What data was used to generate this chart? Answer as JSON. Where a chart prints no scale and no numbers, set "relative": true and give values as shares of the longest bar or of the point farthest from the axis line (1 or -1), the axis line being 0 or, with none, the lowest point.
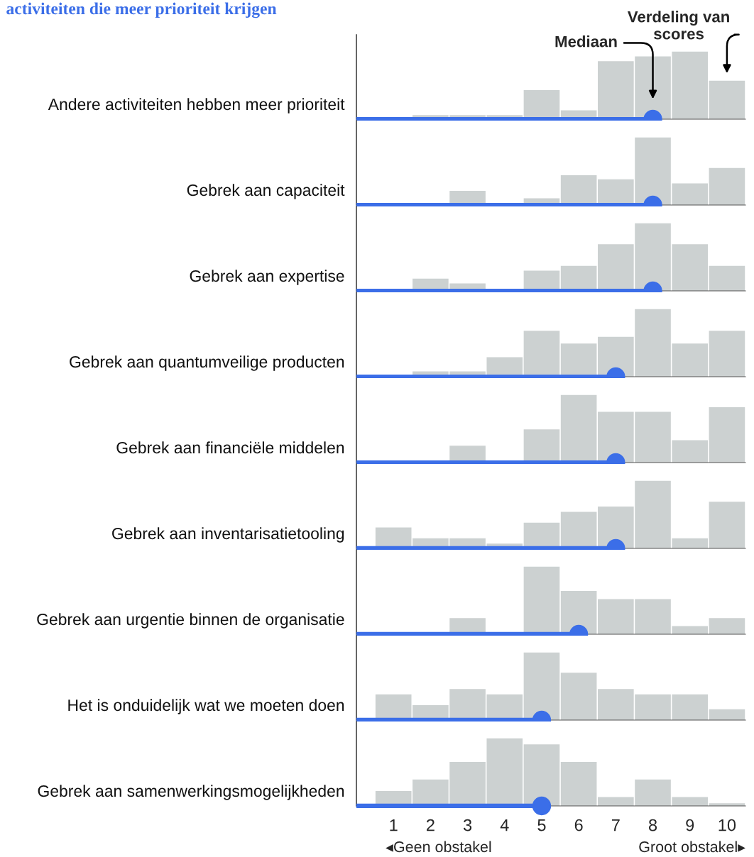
{
  "chart_data": [
    {
      "type": "bar",
      "title": "activiteiten die meer prioriteit krijgen",
      "ylabel": "Andere activiteiten hebben meer prioriteit",
      "relative": true,
      "x": [
        1,
        2,
        3,
        4,
        5,
        6,
        7,
        8,
        9,
        10
      ],
      "xlim": [
        0,
        10.5
      ],
      "xticks": [
        1,
        2,
        3,
        4,
        5,
        6,
        7,
        8,
        9,
        10
      ],
      "tick_labels": false,
      "series": [
        {
          "color": "#ccd1d1",
          "values": [
            0,
            0.06,
            0.06,
            0.06,
            0.43,
            0.13,
            0.86,
            0.93,
            1,
            0.57
          ]
        },
        {
          "type": "lollipop",
          "color": "#3b6ee8",
          "x": [
            8
          ],
          "values": [
            0
          ]
        }
      ],
      "annotations": [
        "Mediaan",
        "Verdeling van scores"
      ]
    },
    {
      "type": "bar",
      "ylabel": "Gebrek aan capaciteit",
      "relative": true,
      "x": [
        1,
        2,
        3,
        4,
        5,
        6,
        7,
        8,
        9,
        10
      ],
      "xlim": [
        0,
        10.5
      ],
      "xticks": [
        1,
        2,
        3,
        4,
        5,
        6,
        7,
        8,
        9,
        10
      ],
      "tick_labels": false,
      "series": [
        {
          "color": "#ccd1d1",
          "values": [
            0,
            0,
            0.21,
            0,
            0.1,
            0.44,
            0.38,
            1,
            0.32,
            0.55
          ]
        },
        {
          "type": "lollipop",
          "color": "#3b6ee8",
          "x": [
            8
          ],
          "values": [
            0
          ]
        }
      ]
    },
    {
      "type": "bar",
      "ylabel": "Gebrek aan expertise",
      "relative": true,
      "x": [
        1,
        2,
        3,
        4,
        5,
        6,
        7,
        8,
        9,
        10
      ],
      "xlim": [
        0,
        10.5
      ],
      "xticks": [
        1,
        2,
        3,
        4,
        5,
        6,
        7,
        8,
        9,
        10
      ],
      "tick_labels": false,
      "series": [
        {
          "color": "#ccd1d1",
          "values": [
            0,
            0.18,
            0.11,
            0,
            0.3,
            0.37,
            0.69,
            1,
            0.69,
            0.37
          ]
        },
        {
          "type": "lollipop",
          "color": "#3b6ee8",
          "x": [
            8
          ],
          "values": [
            0
          ]
        }
      ]
    },
    {
      "type": "bar",
      "ylabel": "Gebrek aan quantumveilige producten",
      "relative": true,
      "x": [
        1,
        2,
        3,
        4,
        5,
        6,
        7,
        8,
        9,
        10
      ],
      "xlim": [
        0,
        10.5
      ],
      "xticks": [
        1,
        2,
        3,
        4,
        5,
        6,
        7,
        8,
        9,
        10
      ],
      "tick_labels": false,
      "series": [
        {
          "color": "#ccd1d1",
          "values": [
            0,
            0.08,
            0.08,
            0.29,
            0.68,
            0.49,
            0.59,
            1,
            0.49,
            0.68
          ]
        },
        {
          "type": "lollipop",
          "color": "#3b6ee8",
          "x": [
            7
          ],
          "values": [
            0
          ]
        }
      ]
    },
    {
      "type": "bar",
      "ylabel": "Gebrek aan financiële middelen",
      "relative": true,
      "x": [
        1,
        2,
        3,
        4,
        5,
        6,
        7,
        8,
        9,
        10
      ],
      "xlim": [
        0,
        10.5
      ],
      "xticks": [
        1,
        2,
        3,
        4,
        5,
        6,
        7,
        8,
        9,
        10
      ],
      "tick_labels": false,
      "series": [
        {
          "color": "#ccd1d1",
          "values": [
            0,
            0,
            0.25,
            0,
            0.49,
            1,
            0.75,
            0.75,
            0.33,
            0.82
          ]
        },
        {
          "type": "lollipop",
          "color": "#3b6ee8",
          "x": [
            7
          ],
          "values": [
            0
          ]
        }
      ]
    },
    {
      "type": "bar",
      "ylabel": "Gebrek aan inventarisatietooling",
      "relative": true,
      "x": [
        1,
        2,
        3,
        4,
        5,
        6,
        7,
        8,
        9,
        10
      ],
      "xlim": [
        0,
        10.5
      ],
      "xticks": [
        1,
        2,
        3,
        4,
        5,
        6,
        7,
        8,
        9,
        10
      ],
      "tick_labels": false,
      "series": [
        {
          "color": "#ccd1d1",
          "values": [
            0.31,
            0.15,
            0.15,
            0.07,
            0.38,
            0.54,
            0.62,
            1,
            0.15,
            0.69
          ]
        },
        {
          "type": "lollipop",
          "color": "#3b6ee8",
          "x": [
            7
          ],
          "values": [
            0
          ]
        }
      ]
    },
    {
      "type": "bar",
      "ylabel": "Gebrek aan urgentie binnen de organisatie",
      "relative": true,
      "x": [
        1,
        2,
        3,
        4,
        5,
        6,
        7,
        8,
        9,
        10
      ],
      "xlim": [
        0,
        10.5
      ],
      "xticks": [
        1,
        2,
        3,
        4,
        5,
        6,
        7,
        8,
        9,
        10
      ],
      "tick_labels": false,
      "series": [
        {
          "color": "#ccd1d1",
          "values": [
            0,
            0,
            0.24,
            0,
            1,
            0.64,
            0.52,
            0.52,
            0.12,
            0.24
          ]
        },
        {
          "type": "lollipop",
          "color": "#3b6ee8",
          "x": [
            6
          ],
          "values": [
            0
          ]
        }
      ]
    },
    {
      "type": "bar",
      "ylabel": "Het is onduidelijk wat we moeten doen",
      "relative": true,
      "x": [
        1,
        2,
        3,
        4,
        5,
        6,
        7,
        8,
        9,
        10
      ],
      "xlim": [
        0,
        10.5
      ],
      "xticks": [
        1,
        2,
        3,
        4,
        5,
        6,
        7,
        8,
        9,
        10
      ],
      "tick_labels": false,
      "series": [
        {
          "color": "#ccd1d1",
          "values": [
            0.38,
            0.22,
            0.46,
            0.38,
            1,
            0.7,
            0.46,
            0.38,
            0.38,
            0.16
          ]
        },
        {
          "type": "lollipop",
          "color": "#3b6ee8",
          "x": [
            5
          ],
          "values": [
            0
          ]
        }
      ]
    },
    {
      "type": "bar",
      "ylabel": "Gebrek aan samenwerkingsmogelijkheden",
      "relative": true,
      "x": [
        1,
        2,
        3,
        4,
        5,
        6,
        7,
        8,
        9,
        10
      ],
      "xlim": [
        0,
        10.5
      ],
      "xticks": [
        1,
        2,
        3,
        4,
        5,
        6,
        7,
        8,
        9,
        10
      ],
      "tick_labels": "x",
      "series": [
        {
          "color": "#ccd1d1",
          "values": [
            0.22,
            0.39,
            0.65,
            1,
            0.91,
            0.65,
            0.13,
            0.39,
            0.13,
            0.04
          ]
        },
        {
          "type": "lollipop",
          "color": "#3b6ee8",
          "x": [
            5
          ],
          "values": [
            0
          ]
        }
      ],
      "annotations": [
        "◂Geen obstakel",
        "Groot obstakel▸"
      ]
    }
  ]
}
